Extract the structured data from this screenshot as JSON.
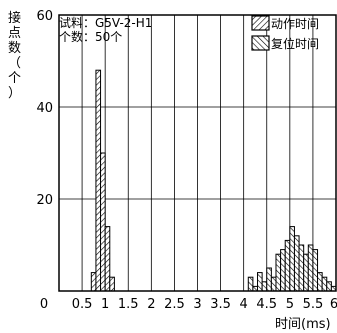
{
  "chart_data": {
    "type": "bar",
    "ylabel_chars": [
      "接",
      "点",
      "数",
      "（",
      "个",
      "）"
    ],
    "xlabel": "时间(ms)",
    "ylim": [
      0,
      60
    ],
    "xlim": [
      0,
      6
    ],
    "yticks": [
      "60",
      "40",
      "20"
    ],
    "xticks": [
      "0",
      "0.5",
      "1",
      "1.5",
      "2",
      "2.5",
      "3",
      "3.5",
      "4",
      "4.5",
      "5",
      "5.5",
      "6"
    ],
    "y_zero_label": "0",
    "info": {
      "sample": "试料：G5V-2-H1",
      "count": "个数：50个"
    },
    "grid": true,
    "legend_position": "top-right",
    "series": [
      {
        "name": "动作时间",
        "bin_width": 0.1,
        "bins": [
          {
            "x": 0.7,
            "value": 4
          },
          {
            "x": 0.8,
            "value": 48
          },
          {
            "x": 0.9,
            "value": 30
          },
          {
            "x": 1.0,
            "value": 14
          },
          {
            "x": 1.1,
            "value": 3
          }
        ]
      },
      {
        "name": "复位时间",
        "bin_width": 0.1,
        "bins": [
          {
            "x": 4.1,
            "value": 3
          },
          {
            "x": 4.2,
            "value": 1
          },
          {
            "x": 4.3,
            "value": 4
          },
          {
            "x": 4.4,
            "value": 2
          },
          {
            "x": 4.5,
            "value": 5
          },
          {
            "x": 4.6,
            "value": 3
          },
          {
            "x": 4.7,
            "value": 8
          },
          {
            "x": 4.8,
            "value": 9
          },
          {
            "x": 4.9,
            "value": 11
          },
          {
            "x": 5.0,
            "value": 14
          },
          {
            "x": 5.1,
            "value": 12
          },
          {
            "x": 5.2,
            "value": 10
          },
          {
            "x": 5.3,
            "value": 8
          },
          {
            "x": 5.4,
            "value": 10
          },
          {
            "x": 5.5,
            "value": 9
          },
          {
            "x": 5.6,
            "value": 4
          },
          {
            "x": 5.7,
            "value": 3
          },
          {
            "x": 5.8,
            "value": 2
          },
          {
            "x": 5.9,
            "value": 1
          }
        ]
      }
    ]
  }
}
